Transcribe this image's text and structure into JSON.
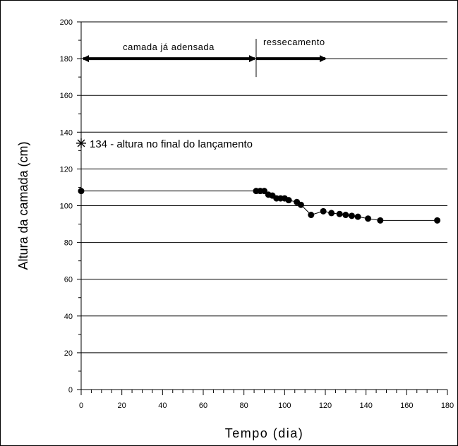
{
  "chart_data": {
    "type": "scatter",
    "title": "",
    "xlabel": "Tempo (dia)",
    "ylabel": "Altura da camada (cm)",
    "xlim": [
      0,
      180
    ],
    "ylim": [
      0,
      200
    ],
    "xticks": [
      0,
      20,
      40,
      60,
      80,
      100,
      120,
      140,
      160,
      180
    ],
    "yticks": [
      0,
      20,
      40,
      60,
      80,
      100,
      120,
      140,
      160,
      180,
      200
    ],
    "grid": "horizontal",
    "series": [
      {
        "x": [
          0,
          86,
          88,
          90,
          92,
          94,
          96,
          98,
          100,
          102,
          106,
          108,
          113,
          119,
          123,
          127,
          130,
          133,
          136,
          141,
          147,
          175
        ],
        "y": [
          108,
          108,
          108,
          108,
          106,
          105.5,
          104,
          104,
          104,
          103,
          102,
          100.5,
          95,
          97,
          96,
          95.5,
          95,
          94.5,
          94,
          93,
          92,
          92
        ]
      }
    ],
    "special_point": {
      "x": 0,
      "y": 134,
      "label": "134 - altura no final do lançamento"
    },
    "annotations": [
      {
        "label": "camada já adensada",
        "x_from": 0,
        "x_to": 86,
        "y": 180
      },
      {
        "label": "ressecamento",
        "x_from": 86,
        "x_to": 120,
        "y": 180
      }
    ],
    "divider_x": 86
  }
}
